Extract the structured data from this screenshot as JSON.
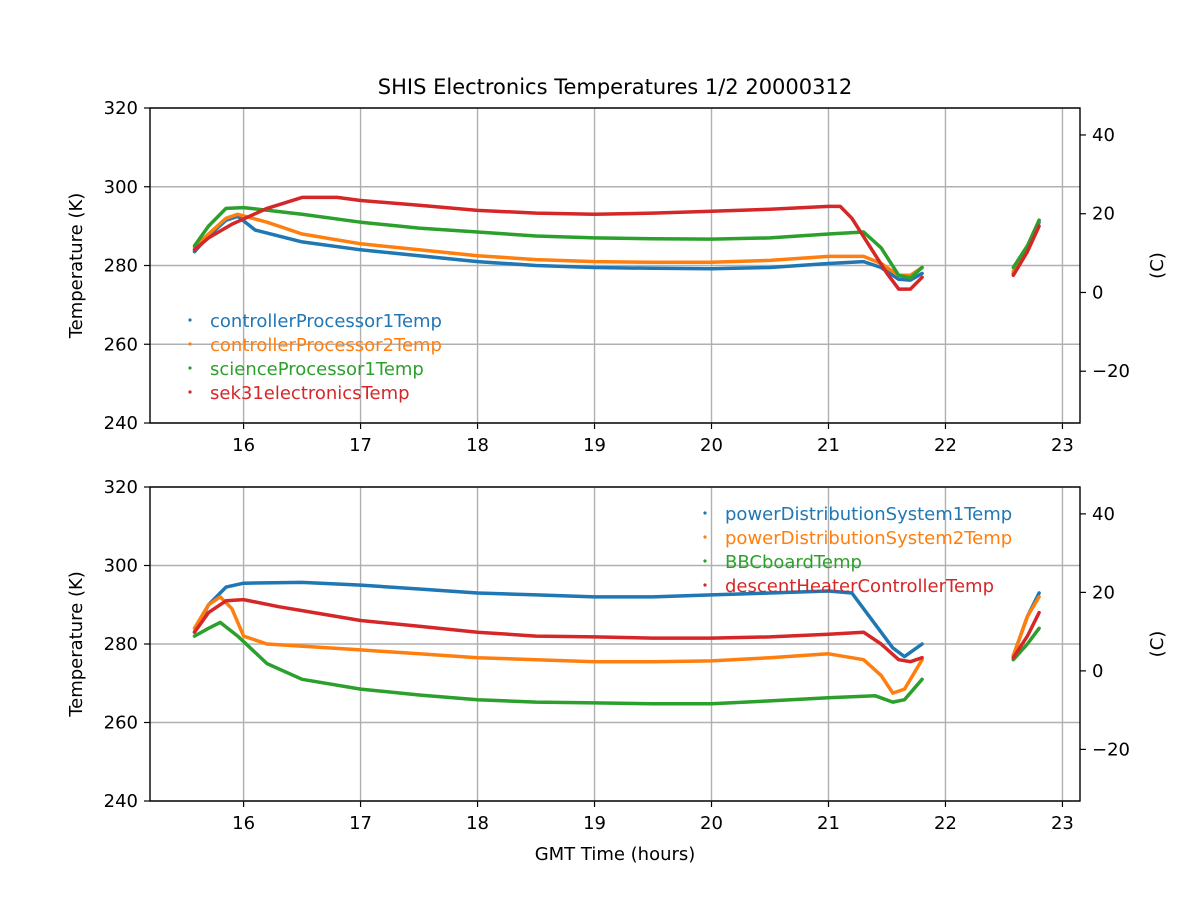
{
  "chart_data": {
    "type": "line",
    "title": "SHIS Electronics Temperatures 1/2 20000312",
    "xlabel": "GMT Time (hours)",
    "xlim": [
      15.2,
      23.15
    ],
    "x_ticks": [
      16,
      17,
      18,
      19,
      20,
      21,
      22,
      23
    ],
    "x_tick_labels": [
      "16",
      "17",
      "18",
      "19",
      "20",
      "21",
      "22",
      "23"
    ],
    "colors": {
      "blue": "#1f77b4",
      "orange": "#ff7f0e",
      "green": "#2ca02c",
      "red": "#d62728",
      "grid": "#b0b0b0"
    },
    "panels": [
      {
        "ylabel": "Temperature (K)",
        "ylim": [
          240,
          320
        ],
        "y_ticks": [
          240,
          260,
          280,
          300,
          320
        ],
        "y_tick_labels": [
          "240",
          "260",
          "280",
          "300",
          "320"
        ],
        "y2label": "(C)",
        "y2_ticks": [
          -20,
          0,
          20,
          40
        ],
        "y2_tick_labels": [
          "−20",
          "0",
          "20",
          "40"
        ],
        "legend_loc": "center-left",
        "series": [
          {
            "name": "controllerProcessor1Temp",
            "color": "#1f77b4",
            "segments": [
              [
                [
                  15.58,
                  283.5
                ],
                [
                  15.7,
                  287.5
                ],
                [
                  15.85,
                  291.5
                ],
                [
                  15.95,
                  292.5
                ],
                [
                  16.1,
                  289
                ],
                [
                  16.5,
                  286
                ],
                [
                  17.0,
                  284
                ],
                [
                  17.5,
                  282.5
                ],
                [
                  18.0,
                  281
                ],
                [
                  18.5,
                  280
                ],
                [
                  19.0,
                  279.5
                ],
                [
                  19.5,
                  279.3
                ],
                [
                  20.0,
                  279.2
                ],
                [
                  20.5,
                  279.5
                ],
                [
                  21.0,
                  280.5
                ],
                [
                  21.3,
                  281
                ],
                [
                  21.45,
                  279.5
                ],
                [
                  21.6,
                  276.5
                ],
                [
                  21.7,
                  276.3
                ],
                [
                  21.8,
                  278
                ]
              ],
              [
                [
                  22.58,
                  278
                ],
                [
                  22.7,
                  284
                ],
                [
                  22.8,
                  291
                ]
              ]
            ]
          },
          {
            "name": "controllerProcessor2Temp",
            "color": "#ff7f0e",
            "segments": [
              [
                [
                  15.58,
                  284.5
                ],
                [
                  15.7,
                  288
                ],
                [
                  15.85,
                  292
                ],
                [
                  15.95,
                  293
                ],
                [
                  16.2,
                  291
                ],
                [
                  16.5,
                  288
                ],
                [
                  17.0,
                  285.5
                ],
                [
                  17.5,
                  284
                ],
                [
                  18.0,
                  282.5
                ],
                [
                  18.5,
                  281.5
                ],
                [
                  19.0,
                  281
                ],
                [
                  19.5,
                  280.8
                ],
                [
                  20.0,
                  280.8
                ],
                [
                  20.5,
                  281.3
                ],
                [
                  21.0,
                  282.3
                ],
                [
                  21.3,
                  282.3
                ],
                [
                  21.45,
                  280.5
                ],
                [
                  21.6,
                  277.5
                ],
                [
                  21.7,
                  277.5
                ],
                [
                  21.8,
                  279.5
                ]
              ],
              [
                [
                  22.58,
                  278.5
                ],
                [
                  22.7,
                  284.5
                ],
                [
                  22.8,
                  291.5
                ]
              ]
            ]
          },
          {
            "name": "scienceProcessor1Temp",
            "color": "#2ca02c",
            "segments": [
              [
                [
                  15.58,
                  285
                ],
                [
                  15.7,
                  290
                ],
                [
                  15.85,
                  294.5
                ],
                [
                  16.0,
                  294.7
                ],
                [
                  16.5,
                  293
                ],
                [
                  17.0,
                  291
                ],
                [
                  17.5,
                  289.5
                ],
                [
                  18.0,
                  288.5
                ],
                [
                  18.5,
                  287.5
                ],
                [
                  19.0,
                  287
                ],
                [
                  19.5,
                  286.8
                ],
                [
                  20.0,
                  286.7
                ],
                [
                  20.5,
                  287
                ],
                [
                  21.0,
                  288
                ],
                [
                  21.3,
                  288.5
                ],
                [
                  21.45,
                  284.5
                ],
                [
                  21.6,
                  277.5
                ],
                [
                  21.7,
                  276.8
                ],
                [
                  21.8,
                  279.5
                ]
              ],
              [
                [
                  22.58,
                  279.5
                ],
                [
                  22.7,
                  285
                ],
                [
                  22.8,
                  291.5
                ]
              ]
            ]
          },
          {
            "name": "sek31electronicsTemp",
            "color": "#d62728",
            "segments": [
              [
                [
                  15.58,
                  284
                ],
                [
                  15.7,
                  287
                ],
                [
                  15.9,
                  290.5
                ],
                [
                  16.2,
                  294.5
                ],
                [
                  16.5,
                  297.3
                ],
                [
                  16.8,
                  297.3
                ],
                [
                  17.0,
                  296.5
                ],
                [
                  17.5,
                  295.3
                ],
                [
                  18.0,
                  294
                ],
                [
                  18.5,
                  293.3
                ],
                [
                  19.0,
                  293
                ],
                [
                  19.5,
                  293.3
                ],
                [
                  20.0,
                  293.8
                ],
                [
                  20.5,
                  294.3
                ],
                [
                  21.0,
                  295
                ],
                [
                  21.1,
                  295
                ],
                [
                  21.2,
                  292
                ],
                [
                  21.35,
                  285
                ],
                [
                  21.5,
                  278
                ],
                [
                  21.6,
                  274
                ],
                [
                  21.7,
                  274
                ],
                [
                  21.8,
                  277
                ]
              ],
              [
                [
                  22.58,
                  277.5
                ],
                [
                  22.7,
                  283.5
                ],
                [
                  22.8,
                  290
                ]
              ]
            ]
          }
        ]
      },
      {
        "ylabel": "Temperature (K)",
        "ylim": [
          240,
          320
        ],
        "y_ticks": [
          240,
          260,
          280,
          300,
          320
        ],
        "y_tick_labels": [
          "240",
          "260",
          "280",
          "300",
          "320"
        ],
        "y2label": "(C)",
        "y2_ticks": [
          -20,
          0,
          20,
          40
        ],
        "y2_tick_labels": [
          "−20",
          "0",
          "20",
          "40"
        ],
        "legend_loc": "upper-right",
        "series": [
          {
            "name": "powerDistributionSystem1Temp",
            "color": "#1f77b4",
            "segments": [
              [
                [
                  15.58,
                  283
                ],
                [
                  15.7,
                  290
                ],
                [
                  15.85,
                  294.5
                ],
                [
                  16.0,
                  295.5
                ],
                [
                  16.5,
                  295.7
                ],
                [
                  17.0,
                  295
                ],
                [
                  17.5,
                  294
                ],
                [
                  18.0,
                  293
                ],
                [
                  18.5,
                  292.5
                ],
                [
                  19.0,
                  292
                ],
                [
                  19.5,
                  292
                ],
                [
                  20.0,
                  292.5
                ],
                [
                  20.5,
                  293
                ],
                [
                  21.0,
                  293.5
                ],
                [
                  21.2,
                  293
                ],
                [
                  21.4,
                  285
                ],
                [
                  21.55,
                  279
                ],
                [
                  21.65,
                  276.8
                ],
                [
                  21.8,
                  280
                ]
              ],
              [
                [
                  22.58,
                  277
                ],
                [
                  22.7,
                  287
                ],
                [
                  22.8,
                  293
                ]
              ]
            ]
          },
          {
            "name": "powerDistributionSystem2Temp",
            "color": "#ff7f0e",
            "segments": [
              [
                [
                  15.58,
                  284
                ],
                [
                  15.7,
                  290
                ],
                [
                  15.8,
                  292
                ],
                [
                  15.9,
                  289
                ],
                [
                  16.0,
                  282
                ],
                [
                  16.2,
                  280
                ],
                [
                  17.0,
                  278.5
                ],
                [
                  17.5,
                  277.5
                ],
                [
                  18.0,
                  276.5
                ],
                [
                  18.5,
                  276
                ],
                [
                  19.0,
                  275.5
                ],
                [
                  19.5,
                  275.5
                ],
                [
                  20.0,
                  275.7
                ],
                [
                  20.5,
                  276.5
                ],
                [
                  21.0,
                  277.5
                ],
                [
                  21.3,
                  276
                ],
                [
                  21.45,
                  272
                ],
                [
                  21.55,
                  267.5
                ],
                [
                  21.65,
                  268.5
                ],
                [
                  21.8,
                  276
                ]
              ],
              [
                [
                  22.58,
                  277
                ],
                [
                  22.7,
                  287
                ],
                [
                  22.8,
                  292
                ]
              ]
            ]
          },
          {
            "name": "BBCboardTemp",
            "color": "#2ca02c",
            "segments": [
              [
                [
                  15.58,
                  282
                ],
                [
                  15.7,
                  284
                ],
                [
                  15.8,
                  285.5
                ],
                [
                  15.95,
                  282
                ],
                [
                  16.2,
                  275
                ],
                [
                  16.5,
                  271
                ],
                [
                  17.0,
                  268.5
                ],
                [
                  17.5,
                  267
                ],
                [
                  18.0,
                  265.8
                ],
                [
                  18.5,
                  265.2
                ],
                [
                  19.0,
                  265
                ],
                [
                  19.5,
                  264.8
                ],
                [
                  20.0,
                  264.8
                ],
                [
                  20.5,
                  265.5
                ],
                [
                  21.0,
                  266.3
                ],
                [
                  21.4,
                  266.8
                ],
                [
                  21.55,
                  265.2
                ],
                [
                  21.65,
                  265.8
                ],
                [
                  21.8,
                  271
                ]
              ],
              [
                [
                  22.58,
                  276
                ],
                [
                  22.7,
                  280
                ],
                [
                  22.8,
                  284
                ]
              ]
            ]
          },
          {
            "name": "descentHeaterControllerTemp",
            "color": "#d62728",
            "segments": [
              [
                [
                  15.58,
                  283
                ],
                [
                  15.7,
                  288
                ],
                [
                  15.85,
                  291
                ],
                [
                  16.0,
                  291.3
                ],
                [
                  16.3,
                  289.5
                ],
                [
                  16.5,
                  288.5
                ],
                [
                  17.0,
                  286
                ],
                [
                  17.5,
                  284.5
                ],
                [
                  18.0,
                  283
                ],
                [
                  18.5,
                  282
                ],
                [
                  19.0,
                  281.8
                ],
                [
                  19.5,
                  281.5
                ],
                [
                  20.0,
                  281.5
                ],
                [
                  20.5,
                  281.8
                ],
                [
                  21.0,
                  282.5
                ],
                [
                  21.3,
                  283
                ],
                [
                  21.45,
                  280
                ],
                [
                  21.6,
                  276
                ],
                [
                  21.7,
                  275.5
                ],
                [
                  21.8,
                  276.5
                ]
              ],
              [
                [
                  22.58,
                  276.5
                ],
                [
                  22.7,
                  282
                ],
                [
                  22.8,
                  288
                ]
              ]
            ]
          }
        ]
      }
    ]
  }
}
